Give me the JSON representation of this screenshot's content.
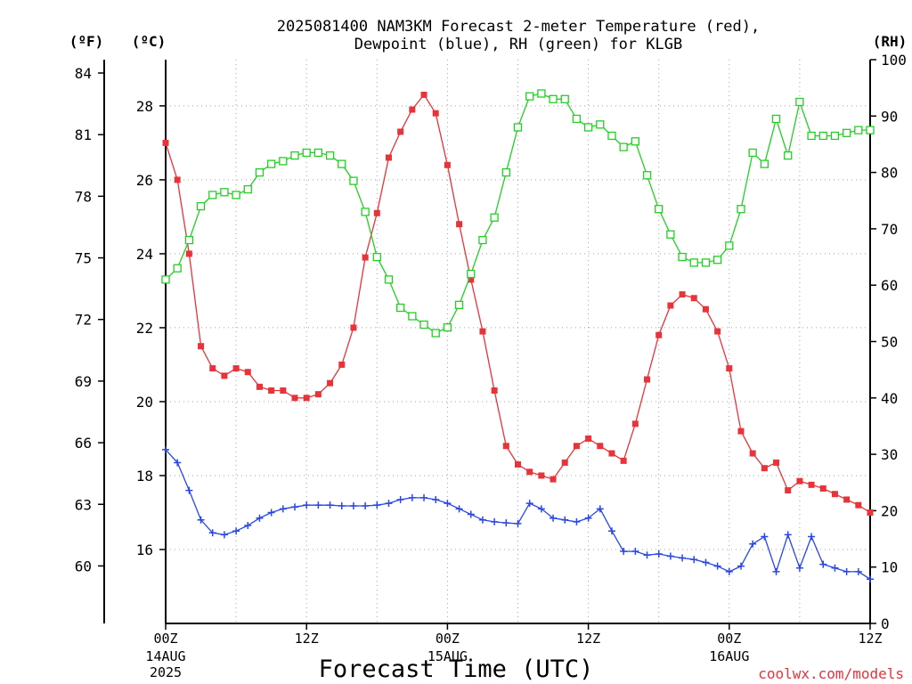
{
  "title_line1": "2025081400 NAM3KM Forecast 2-meter Temperature (red),",
  "title_line2": "Dewpoint (blue), RH (green) for KLGB",
  "unit_f": "(ºF)",
  "unit_c": "(ºC)",
  "unit_rh": "(RH)",
  "xlabel": "Forecast Time (UTC)",
  "credit": "coolwx.com/models",
  "x_ticks": [
    {
      "label": "00Z",
      "date": "14AUG",
      "year": "2025",
      "h": 0
    },
    {
      "label": "12Z",
      "date": "",
      "year": "",
      "h": 12
    },
    {
      "label": "00Z",
      "date": "15AUG",
      "year": "",
      "h": 24
    },
    {
      "label": "12Z",
      "date": "",
      "year": "",
      "h": 36
    },
    {
      "label": "00Z",
      "date": "16AUG",
      "year": "",
      "h": 48
    },
    {
      "label": "12Z",
      "date": "",
      "year": "",
      "h": 60
    }
  ],
  "chart_data": {
    "type": "line",
    "x_unit": "forecast hour from 2025081400",
    "xlim": [
      0,
      60
    ],
    "ylim_c": [
      14.0,
      29.25
    ],
    "ylim_rh": [
      0,
      100
    ],
    "ylim_f": [
      57.2,
      84.65
    ],
    "yticks_c": [
      16,
      18,
      20,
      22,
      24,
      26,
      28
    ],
    "yticks_f": [
      60,
      63,
      66,
      69,
      72,
      75,
      78,
      81,
      84
    ],
    "yticks_rh": [
      0,
      10,
      20,
      30,
      40,
      50,
      60,
      70,
      80,
      90,
      100
    ],
    "grid": true,
    "colors": {
      "temperature": "#e8333a",
      "dewpoint": "#2946e8",
      "rh": "#22d022"
    },
    "series": [
      {
        "key": "temperature",
        "units": "C",
        "marker": "filled-square",
        "x": [
          0,
          1,
          2,
          3,
          4,
          5,
          6,
          7,
          8,
          9,
          10,
          11,
          12,
          13,
          14,
          15,
          16,
          17,
          18,
          19,
          20,
          21,
          22,
          23,
          24,
          25,
          26,
          27,
          28,
          29,
          30,
          31,
          32,
          33,
          34,
          35,
          36,
          37,
          38,
          39,
          40,
          41,
          42,
          43,
          44,
          45,
          46,
          47,
          48,
          49,
          50,
          51,
          52,
          53,
          54,
          55,
          56,
          57,
          58,
          59,
          60
        ],
        "values": [
          27.0,
          26.0,
          24.0,
          21.5,
          20.9,
          20.7,
          20.9,
          20.8,
          20.4,
          20.3,
          20.3,
          20.1,
          20.1,
          20.2,
          20.5,
          21.0,
          22.0,
          23.9,
          25.1,
          26.6,
          27.3,
          27.9,
          28.3,
          27.8,
          26.4,
          24.8,
          23.3,
          21.9,
          20.3,
          18.8,
          18.3,
          18.1,
          18.0,
          17.9,
          18.35,
          18.8,
          19.0,
          18.8,
          18.6,
          18.4,
          19.4,
          20.6,
          21.8,
          22.6,
          22.9,
          22.8,
          22.5,
          21.9,
          20.9,
          19.2,
          18.6,
          18.2,
          18.35,
          17.6,
          17.85,
          17.75,
          17.65,
          17.5,
          17.35,
          17.2,
          17.0
        ],
        "name": "Temperature"
      },
      {
        "key": "dewpoint",
        "units": "C",
        "marker": "plus",
        "x": [
          0,
          1,
          2,
          3,
          4,
          5,
          6,
          7,
          8,
          9,
          10,
          11,
          12,
          13,
          14,
          15,
          16,
          17,
          18,
          19,
          20,
          21,
          22,
          23,
          24,
          25,
          26,
          27,
          28,
          29,
          30,
          31,
          32,
          33,
          34,
          35,
          36,
          37,
          38,
          39,
          40,
          41,
          42,
          43,
          44,
          45,
          46,
          47,
          48,
          49,
          50,
          51,
          52,
          53,
          54,
          55,
          56,
          57,
          58,
          59,
          60
        ],
        "values": [
          18.7,
          18.35,
          17.6,
          16.8,
          16.45,
          16.4,
          16.5,
          16.65,
          16.85,
          17.0,
          17.1,
          17.15,
          17.2,
          17.2,
          17.2,
          17.18,
          17.18,
          17.18,
          17.2,
          17.25,
          17.35,
          17.4,
          17.4,
          17.35,
          17.25,
          17.1,
          16.95,
          16.8,
          16.75,
          16.72,
          16.7,
          17.25,
          17.1,
          16.85,
          16.8,
          16.75,
          16.85,
          17.1,
          16.5,
          15.95,
          15.95,
          15.85,
          15.88,
          15.82,
          15.77,
          15.73,
          15.65,
          15.55,
          15.4,
          15.55,
          16.15,
          16.35,
          15.4,
          16.4,
          15.5,
          16.35,
          15.6,
          15.5,
          15.4,
          15.4,
          15.2
        ],
        "name": "Dewpoint"
      },
      {
        "key": "rh",
        "units": "%",
        "marker": "open-square",
        "x": [
          0,
          1,
          2,
          3,
          4,
          5,
          6,
          7,
          8,
          9,
          10,
          11,
          12,
          13,
          14,
          15,
          16,
          17,
          18,
          19,
          20,
          21,
          22,
          23,
          24,
          25,
          26,
          27,
          28,
          29,
          30,
          31,
          32,
          33,
          34,
          35,
          36,
          37,
          38,
          39,
          40,
          41,
          42,
          43,
          44,
          45,
          46,
          47,
          48,
          49,
          50,
          51,
          52,
          53,
          54,
          55,
          56,
          57,
          58,
          59,
          60
        ],
        "values": [
          61,
          63,
          68,
          74,
          76,
          76.5,
          76,
          77,
          80,
          81.5,
          82,
          83,
          83.5,
          83.5,
          83,
          81.5,
          78.5,
          73,
          65,
          61,
          56,
          54.5,
          53,
          51.5,
          52.5,
          56.5,
          62,
          68,
          72,
          80,
          88,
          93.5,
          94,
          93,
          93,
          89.5,
          88,
          88.5,
          86.5,
          84.5,
          85.5,
          79.5,
          73.5,
          69,
          65,
          64,
          64,
          64.5,
          67,
          73.5,
          83.5,
          81.5,
          89.5,
          83,
          92.5,
          86.5,
          86.5,
          86.5,
          87,
          87.5,
          87.5
        ],
        "name": "RH"
      }
    ]
  }
}
